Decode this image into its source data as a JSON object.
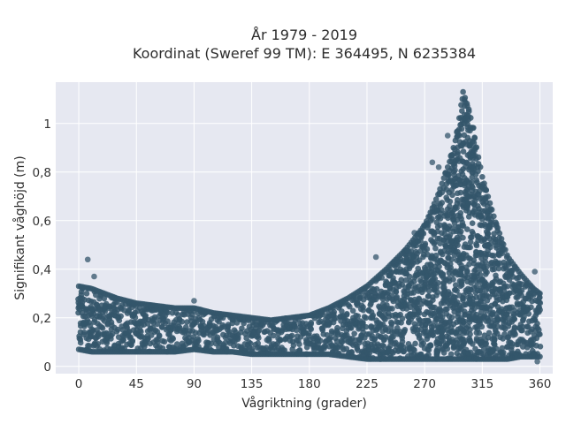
{
  "chart_data": {
    "type": "scatter",
    "title_line1": "År 1979 - 2019",
    "title_line2": "Koordinat (Sweref 99 TM): E 364495, N 6235384",
    "xlabel": "Vågriktning (grader)",
    "ylabel": "Signifikant våghöjd (m)",
    "xlim": [
      -18,
      370
    ],
    "ylim": [
      -0.03,
      1.17
    ],
    "xticks": [
      0,
      45,
      90,
      135,
      180,
      225,
      270,
      315,
      360
    ],
    "xtick_labels": [
      "0",
      "45",
      "90",
      "135",
      "180",
      "225",
      "270",
      "315",
      "360"
    ],
    "yticks": [
      0,
      0.2,
      0.4,
      0.6,
      0.8,
      1
    ],
    "ytick_labels": [
      "0",
      "0,2",
      "0,4",
      "0,6",
      "0,8",
      "1"
    ],
    "grid": true,
    "legend": "none",
    "colors": {
      "background": "#e6e8f1",
      "grid": "#ffffff",
      "marker": "#34566b"
    },
    "envelope": {
      "x": [
        0,
        10,
        20,
        30,
        45,
        60,
        75,
        90,
        105,
        120,
        135,
        150,
        165,
        180,
        195,
        210,
        225,
        240,
        255,
        270,
        280,
        290,
        295,
        300,
        305,
        315,
        325,
        335,
        345,
        355,
        360
      ],
      "upper": [
        0.33,
        0.32,
        0.3,
        0.28,
        0.26,
        0.25,
        0.24,
        0.24,
        0.22,
        0.21,
        0.2,
        0.19,
        0.2,
        0.21,
        0.24,
        0.28,
        0.33,
        0.4,
        0.48,
        0.58,
        0.7,
        0.85,
        0.95,
        1.13,
        1.05,
        0.78,
        0.6,
        0.45,
        0.38,
        0.32,
        0.3
      ],
      "lower": [
        0.07,
        0.06,
        0.06,
        0.06,
        0.06,
        0.06,
        0.06,
        0.07,
        0.06,
        0.06,
        0.05,
        0.05,
        0.05,
        0.05,
        0.05,
        0.04,
        0.03,
        0.03,
        0.03,
        0.03,
        0.03,
        0.03,
        0.03,
        0.03,
        0.03,
        0.03,
        0.03,
        0.03,
        0.04,
        0.04,
        0.04
      ]
    },
    "outliers": [
      {
        "x": 7,
        "y": 0.44
      },
      {
        "x": 12,
        "y": 0.37
      },
      {
        "x": 90,
        "y": 0.27
      },
      {
        "x": 232,
        "y": 0.45
      },
      {
        "x": 262,
        "y": 0.55
      },
      {
        "x": 276,
        "y": 0.84
      },
      {
        "x": 281,
        "y": 0.82
      },
      {
        "x": 288,
        "y": 0.95
      },
      {
        "x": 334,
        "y": 0.4
      },
      {
        "x": 343,
        "y": 0.34
      },
      {
        "x": 356,
        "y": 0.39
      },
      {
        "x": 358,
        "y": 0.02
      }
    ]
  }
}
